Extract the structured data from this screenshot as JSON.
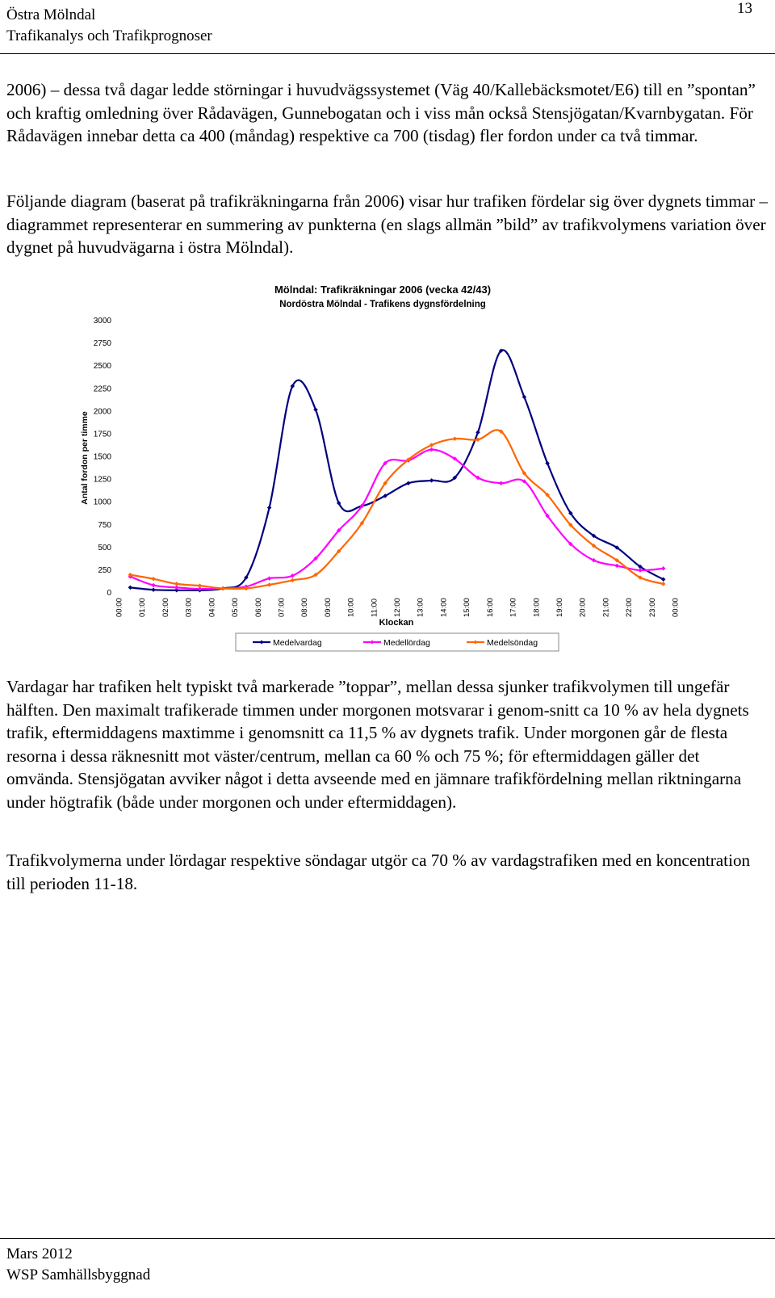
{
  "header": {
    "line1": "Östra Mölndal",
    "line2": "Trafikanalys och Trafikprognoser",
    "page_number": "13"
  },
  "paragraphs": {
    "p1": "2006) – dessa två dagar ledde störningar i huvudvägssystemet (Väg 40/Kallebäcksmotet/E6) till en ”spontan” och kraftig omledning över Rådavägen, Gunnebogatan och i viss mån också Stensjögatan/Kvarnbygatan. För Rådavägen innebar detta ca 400 (måndag) respektive ca 700 (tisdag) fler fordon under ca två timmar.",
    "p2": "Följande diagram (baserat på trafikräkningarna från 2006) visar hur trafiken fördelar sig över dygnets timmar – diagrammet representerar en summering av punkterna (en slags allmän ”bild” av trafikvolymens variation över dygnet på huvudvägarna i östra Mölndal).",
    "p3": "Vardagar har trafiken helt typiskt två markerade ”toppar”, mellan dessa sjunker trafikvolymen till ungefär hälften. Den maximalt trafikerade timmen under morgonen motsvarar i genom-snitt ca 10 % av hela dygnets trafik, eftermiddagens maxtimme i genomsnitt ca 11,5 % av dygnets trafik. Under morgonen går de flesta resorna i dessa räknesnitt mot väster/centrum, mellan ca 60 % och 75 %; för eftermiddagen gäller det omvända. Stensjögatan avviker något i detta avseende med en jämnare trafikfördelning mellan riktningarna under högtrafik (både under morgonen och under eftermiddagen).",
    "p4": "Trafikvolymerna under lördagar respektive söndagar utgör ca 70 % av vardagstrafiken med en koncentration till perioden 11-18."
  },
  "footer": {
    "line1": "Mars 2012",
    "line2": "WSP Samhällsbyggnad"
  },
  "chart_data": {
    "type": "line",
    "title": "Mölndal: Trafikräkningar 2006 (vecka 42/43)",
    "subtitle": "Nordöstra Mölndal - Trafikens dygnsfördelning",
    "xlabel": "Klockan",
    "ylabel": "Antal fordon per timme",
    "ylim": [
      0,
      3000
    ],
    "yticks": [
      0,
      250,
      500,
      750,
      1000,
      1250,
      1500,
      1750,
      2000,
      2250,
      2500,
      2750,
      3000
    ],
    "categories": [
      "00:00",
      "01:00",
      "02:00",
      "03:00",
      "04:00",
      "05:00",
      "06:00",
      "07:00",
      "08:00",
      "09:00",
      "10:00",
      "11:00",
      "12:00",
      "13:00",
      "14:00",
      "15:00",
      "16:00",
      "17:00",
      "18:00",
      "19:00",
      "20:00",
      "21:00",
      "22:00",
      "23:00",
      "00:00"
    ],
    "grid": false,
    "legend_position": "bottom",
    "series": [
      {
        "name": "Medelvardag",
        "color": "#000080",
        "x": [
          0.5,
          1.5,
          2.5,
          3.5,
          4.5,
          5.5,
          6.5,
          7.5,
          8.5,
          9.5,
          10.5,
          11.5,
          12.5,
          13.5,
          14.5,
          15.5,
          16.5,
          17.5,
          18.5,
          19.5,
          20.5,
          21.5,
          22.5,
          23.5
        ],
        "values": [
          50,
          25,
          20,
          20,
          40,
          160,
          930,
          2270,
          2010,
          980,
          950,
          1060,
          1200,
          1230,
          1260,
          1760,
          2660,
          2150,
          1420,
          870,
          620,
          490,
          280,
          140
        ]
      },
      {
        "name": "Medellördag",
        "color": "#ff00ff",
        "x": [
          0.5,
          1.5,
          2.5,
          3.5,
          4.5,
          5.5,
          6.5,
          7.5,
          8.5,
          9.5,
          10.5,
          11.5,
          12.5,
          13.5,
          14.5,
          15.5,
          16.5,
          17.5,
          18.5,
          19.5,
          20.5,
          21.5,
          22.5,
          23.5
        ],
        "values": [
          170,
          75,
          50,
          35,
          40,
          60,
          150,
          180,
          370,
          680,
          950,
          1420,
          1450,
          1570,
          1470,
          1260,
          1200,
          1220,
          840,
          530,
          350,
          290,
          240,
          260
        ]
      },
      {
        "name": "Medelsöndag",
        "color": "#ff6600",
        "x": [
          0.5,
          1.5,
          2.5,
          3.5,
          4.5,
          5.5,
          6.5,
          7.5,
          8.5,
          9.5,
          10.5,
          11.5,
          12.5,
          13.5,
          14.5,
          15.5,
          16.5,
          17.5,
          18.5,
          19.5,
          20.5,
          21.5,
          22.5,
          23.5
        ],
        "values": [
          190,
          145,
          90,
          70,
          40,
          40,
          80,
          130,
          190,
          450,
          760,
          1200,
          1460,
          1620,
          1690,
          1680,
          1770,
          1310,
          1070,
          740,
          510,
          350,
          160,
          90
        ]
      }
    ]
  }
}
